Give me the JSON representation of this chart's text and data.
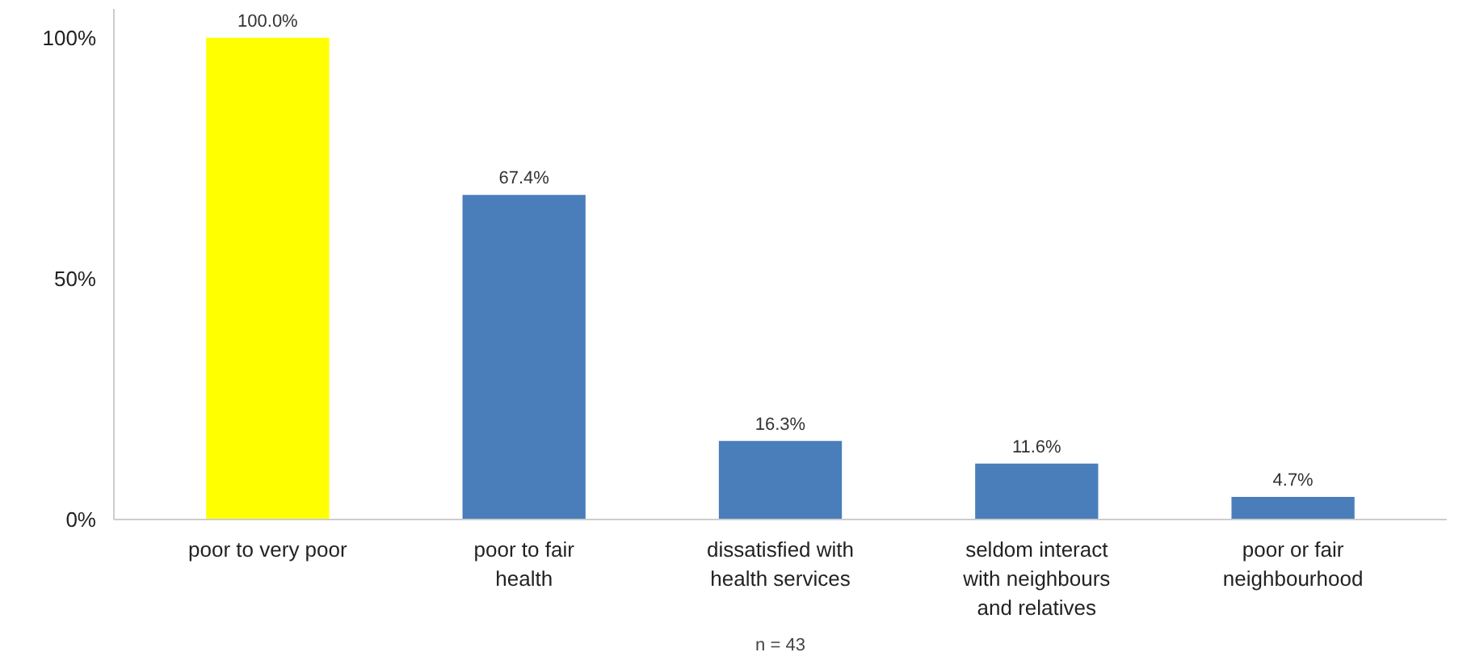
{
  "chart_data": {
    "type": "bar",
    "categories": [
      "poor to very poor",
      "poor to fair health",
      "dissatisfied with health services",
      "seldom interact with neighbours and relatives",
      "poor or fair neighbourhood"
    ],
    "values": [
      100.0,
      67.4,
      16.3,
      11.6,
      4.7
    ],
    "colors": [
      "#ffff00",
      "#4a7ebb",
      "#4a7ebb",
      "#4a7ebb",
      "#4a7ebb"
    ],
    "value_labels": [
      "100.0%",
      "67.4%",
      "16.3%",
      "11.6%",
      "4.7%"
    ],
    "ylim": [
      0,
      106
    ],
    "yticks": [
      {
        "value": 0,
        "label": "0%"
      },
      {
        "value": 50,
        "label": "50%"
      },
      {
        "value": 100,
        "label": "100%"
      }
    ],
    "annotations": [
      "n = 43"
    ],
    "grid": false
  }
}
